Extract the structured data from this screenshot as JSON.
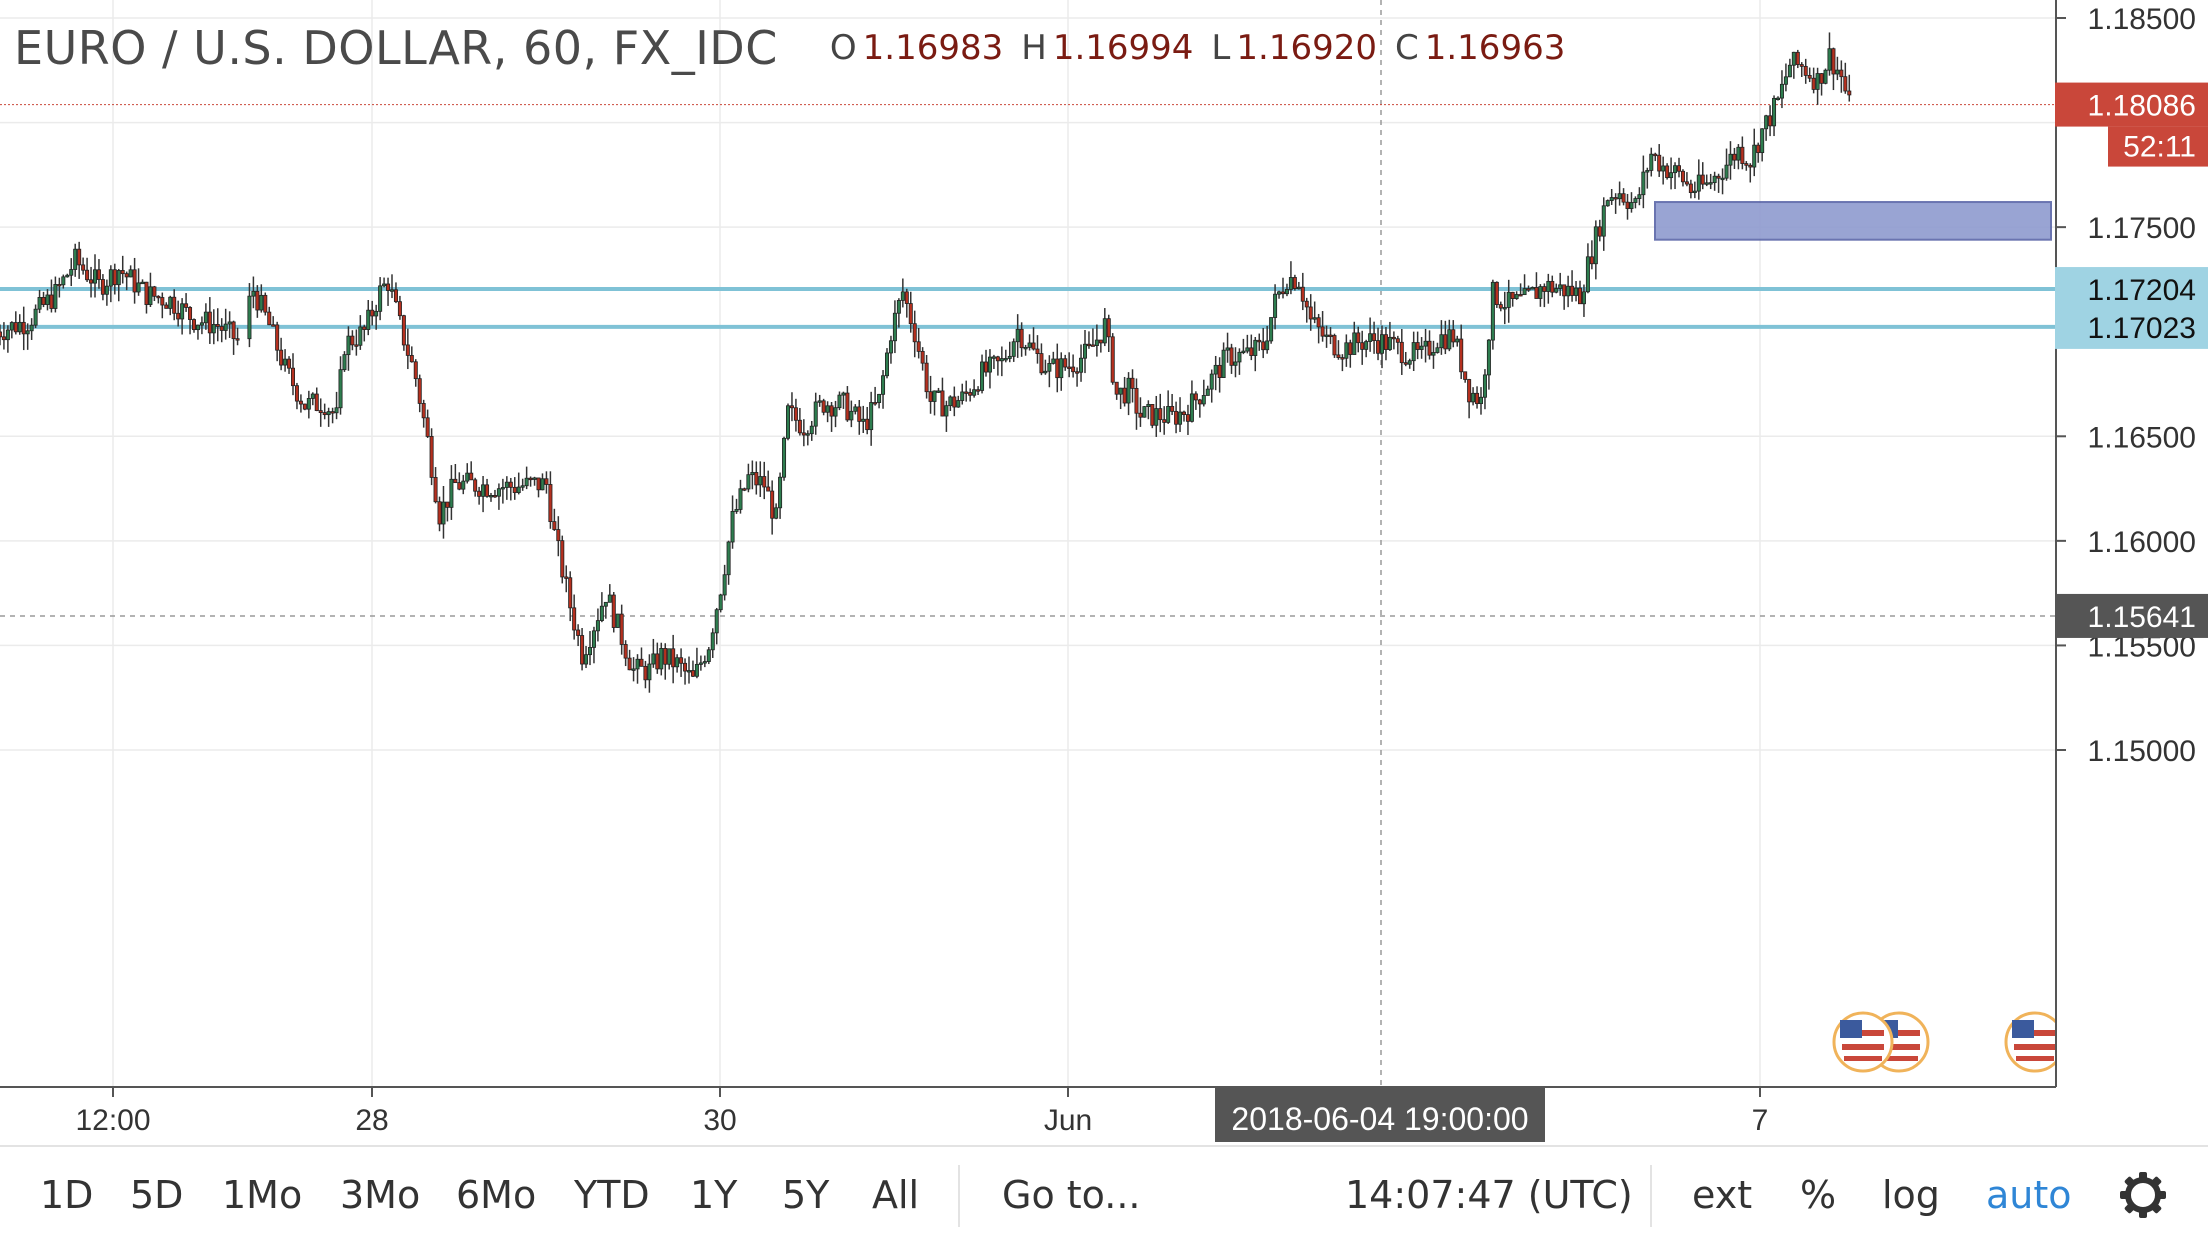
{
  "legend": {
    "title": "EURO / U.S. DOLLAR, 60, FX_IDC",
    "o_label": "O",
    "o_value": "1.16983",
    "h_label": "H",
    "h_value": "1.16994",
    "l_label": "L",
    "l_value": "1.16920",
    "c_label": "C",
    "c_value": "1.16963"
  },
  "price_axis": {
    "ticks": [
      "1.18500",
      "1.17500",
      "1.16500",
      "1.16000",
      "1.15500",
      "1.15000"
    ],
    "last_price": "1.18086",
    "countdown": "52:11",
    "level_1": "1.17204",
    "level_2": "1.17023",
    "crosshair_price": "1.15641"
  },
  "time_axis": {
    "ticks": [
      "12:00",
      "28",
      "30",
      "Jun",
      "7"
    ],
    "crosshair_time": "2018-06-04 19:00:00"
  },
  "toolbar": {
    "ranges": [
      "1D",
      "5D",
      "1Mo",
      "3Mo",
      "6Mo",
      "YTD",
      "1Y",
      "5Y",
      "All"
    ],
    "goto": "Go to...",
    "clock": "14:07:47 (UTC)",
    "ext": "ext",
    "percent": "%",
    "log": "log",
    "auto": "auto"
  },
  "colors": {
    "up": "#2e7d4f",
    "down": "#b5301f",
    "level_line": "#7fc2d6",
    "zone": "#8e9bcf",
    "last_price_bg": "#c9473a",
    "crosshair_bg": "#555555",
    "auto_active": "#2f86d6"
  },
  "chart_data": {
    "type": "candlestick",
    "title": "EURO / U.S. DOLLAR, 60, FX_IDC",
    "ylim": [
      1.149,
      1.186
    ],
    "y_ticks": [
      1.185,
      1.175,
      1.165,
      1.16,
      1.155,
      1.15
    ],
    "x_ticks": [
      "12:00",
      "28",
      "30",
      "Jun",
      "7"
    ],
    "horizontal_levels": [
      1.17204,
      1.17023
    ],
    "last_price": 1.18086,
    "crosshair": {
      "time": "2018-06-04 19:00:00",
      "price": 1.15641
    },
    "zone": {
      "from": 1.1744,
      "to": 1.1762
    },
    "series": [
      {
        "name": "EURO / U.S. DOLLAR",
        "path": [
          [
            0,
            1.17
          ],
          [
            8,
            1.1705
          ],
          [
            15,
            1.1718
          ],
          [
            20,
            1.1734
          ],
          [
            26,
            1.1722
          ],
          [
            31,
            1.173
          ],
          [
            38,
            1.1718
          ],
          [
            44,
            1.1715
          ],
          [
            50,
            1.1706
          ],
          [
            56,
            1.1703
          ],
          [
            61,
            1.1696
          ],
          [
            65,
            1.172
          ],
          [
            69,
            1.1703
          ],
          [
            73,
            1.1682
          ],
          [
            78,
            1.1665
          ],
          [
            83,
            1.1666
          ],
          [
            86,
            1.1659
          ],
          [
            88,
            1.1694
          ],
          [
            93,
            1.17
          ],
          [
            97,
            1.1719
          ],
          [
            99,
            1.1724
          ],
          [
            102,
            1.1703
          ],
          [
            106,
            1.1678
          ],
          [
            109,
            1.1648
          ],
          [
            112,
            1.1613
          ],
          [
            116,
            1.1627
          ],
          [
            120,
            1.1627
          ],
          [
            125,
            1.1626
          ],
          [
            131,
            1.1626
          ],
          [
            136,
            1.1627
          ],
          [
            139,
            1.1627
          ],
          [
            141,
            1.1603
          ],
          [
            145,
            1.1569
          ],
          [
            148,
            1.1546
          ],
          [
            150,
            1.1555
          ],
          [
            154,
            1.1575
          ],
          [
            157,
            1.1559
          ],
          [
            161,
            1.1538
          ],
          [
            165,
            1.1538
          ],
          [
            168,
            1.1545
          ],
          [
            172,
            1.1541
          ],
          [
            176,
            1.1533
          ],
          [
            180,
            1.1551
          ],
          [
            183,
            1.1578
          ],
          [
            186,
            1.161
          ],
          [
            190,
            1.163
          ],
          [
            194,
            1.1627
          ],
          [
            197,
            1.161
          ],
          [
            200,
            1.1661
          ],
          [
            204,
            1.1655
          ],
          [
            209,
            1.1666
          ],
          [
            214,
            1.1665
          ],
          [
            219,
            1.1655
          ],
          [
            223,
            1.1667
          ],
          [
            226,
            1.17
          ],
          [
            229,
            1.1719
          ],
          [
            232,
            1.17
          ],
          [
            236,
            1.1667
          ],
          [
            240,
            1.1665
          ],
          [
            244,
            1.1668
          ],
          [
            249,
            1.168
          ],
          [
            254,
            1.1685
          ],
          [
            258,
            1.1701
          ],
          [
            262,
            1.169
          ],
          [
            266,
            1.1682
          ],
          [
            271,
            1.1684
          ],
          [
            276,
            1.169
          ],
          [
            280,
            1.1703
          ],
          [
            283,
            1.167
          ],
          [
            286,
            1.1672
          ],
          [
            289,
            1.166
          ],
          [
            293,
            1.166
          ],
          [
            297,
            1.1659
          ],
          [
            301,
            1.1663
          ],
          [
            306,
            1.1675
          ],
          [
            311,
            1.1688
          ],
          [
            316,
            1.1689
          ],
          [
            320,
            1.1693
          ],
          [
            323,
            1.1714
          ],
          [
            326,
            1.1726
          ],
          [
            329,
            1.1725
          ],
          [
            332,
            1.1705
          ],
          [
            336,
            1.1696
          ],
          [
            340,
            1.1692
          ],
          [
            344,
            1.1695
          ],
          [
            348,
            1.1696
          ],
          [
            352,
            1.1694
          ],
          [
            356,
            1.169
          ],
          [
            360,
            1.1688
          ],
          [
            364,
            1.1697
          ],
          [
            368,
            1.1698
          ],
          [
            372,
            1.1672
          ],
          [
            375,
            1.1667
          ],
          [
            378,
            1.1718
          ],
          [
            382,
            1.1713
          ],
          [
            386,
            1.1715
          ],
          [
            391,
            1.1722
          ],
          [
            396,
            1.172
          ],
          [
            400,
            1.1718
          ],
          [
            404,
            1.1745
          ],
          [
            407,
            1.1765
          ],
          [
            410,
            1.1767
          ],
          [
            414,
            1.176
          ],
          [
            418,
            1.1785
          ],
          [
            421,
            1.1779
          ],
          [
            425,
            1.1775
          ],
          [
            428,
            1.1768
          ],
          [
            432,
            1.177
          ],
          [
            436,
            1.1778
          ],
          [
            440,
            1.1787
          ],
          [
            443,
            1.1782
          ],
          [
            446,
            1.1796
          ],
          [
            450,
            1.181
          ],
          [
            453,
            1.1828
          ],
          [
            456,
            1.1827
          ],
          [
            460,
            1.182
          ],
          [
            463,
            1.1832
          ],
          [
            466,
            1.1822
          ],
          [
            468,
            1.1808
          ]
        ]
      }
    ]
  }
}
